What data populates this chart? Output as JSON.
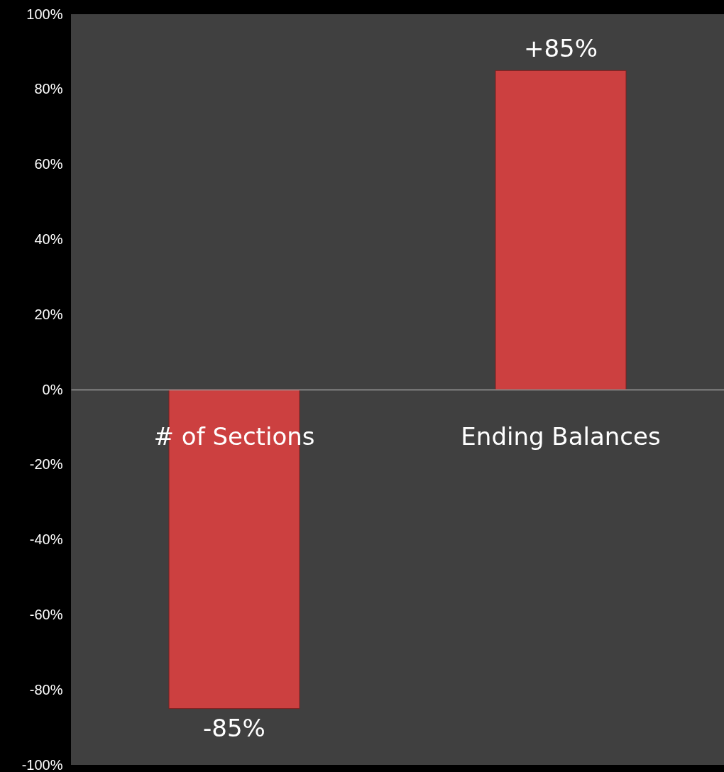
{
  "chart_data": {
    "type": "bar",
    "categories": [
      "# of Sections",
      "Ending Balances"
    ],
    "values": [
      -85,
      85
    ],
    "value_labels": [
      "-85%",
      "+85%"
    ],
    "color": "#cc4040",
    "ylim": [
      -100,
      100
    ],
    "yticks": [
      {
        "value": -100,
        "label": "-100%"
      },
      {
        "value": -80,
        "label": "-80%"
      },
      {
        "value": -60,
        "label": "-60%"
      },
      {
        "value": -40,
        "label": "-40%"
      },
      {
        "value": -20,
        "label": "-20%"
      },
      {
        "value": 0,
        "label": "0%"
      },
      {
        "value": 20,
        "label": "20%"
      },
      {
        "value": 40,
        "label": "40%"
      },
      {
        "value": 60,
        "label": "60%"
      },
      {
        "value": 80,
        "label": "80%"
      },
      {
        "value": 100,
        "label": "100%"
      }
    ],
    "grid": false
  }
}
